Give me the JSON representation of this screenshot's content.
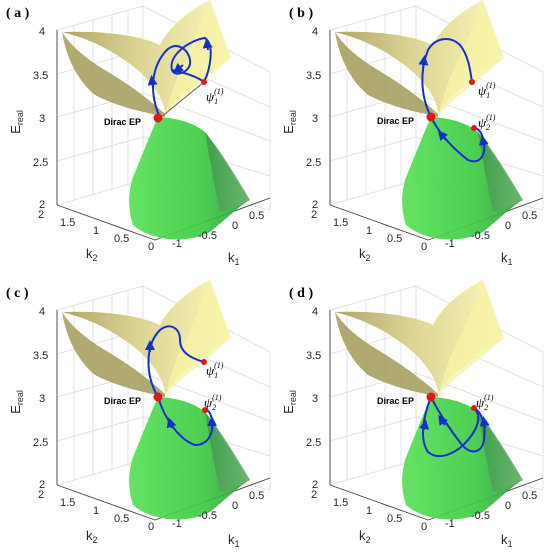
{
  "chart_data": [
    {
      "type": "surface",
      "panel_label": "( a )",
      "axes": {
        "x_label": "k",
        "x_sub": "1",
        "y_label": "k",
        "y_sub": "2",
        "z_label": "E",
        "z_sub": "real"
      },
      "x_ticks": [
        "-1",
        "-0.5",
        "0",
        "0.5"
      ],
      "y_ticks": [
        "0",
        "0.5",
        "1",
        "1.5",
        "2"
      ],
      "z_ticks": [
        "2",
        "2.5",
        "3",
        "3.5",
        "4"
      ],
      "xlim": [
        -1,
        0.5
      ],
      "ylim": [
        0,
        2
      ],
      "zlim": [
        2,
        4
      ],
      "grid": true,
      "surfaces": [
        {
          "name": "upper sheet",
          "color": "#f3ee9a"
        },
        {
          "name": "lower sheet",
          "color": "#3fd34a"
        }
      ],
      "annotations": {
        "ep_text": "Dirac EP",
        "psi_symbol": "ψ",
        "psi_sub": "1",
        "psi_sup": "(1)"
      },
      "loop_color": "#1530c8",
      "point_color": "#e01818"
    },
    {
      "type": "surface",
      "panel_label": "( b )",
      "axes": {
        "x_label": "k",
        "x_sub": "1",
        "y_label": "k",
        "y_sub": "2",
        "z_label": "E",
        "z_sub": "real"
      },
      "x_ticks": [
        "-1",
        "-0.5",
        "0",
        "0.5"
      ],
      "y_ticks": [
        "0",
        "0.5",
        "1",
        "1.5",
        "2"
      ],
      "z_ticks": [
        "2",
        "2.5",
        "3",
        "3.5",
        "4"
      ],
      "xlim": [
        -1,
        0.5
      ],
      "ylim": [
        0,
        2
      ],
      "zlim": [
        2,
        4
      ],
      "grid": true,
      "surfaces": [
        {
          "name": "upper sheet",
          "color": "#f3ee9a"
        },
        {
          "name": "lower sheet",
          "color": "#3fd34a"
        }
      ],
      "annotations": {
        "ep_text": "Dirac EP",
        "psi1_symbol": "ψ",
        "psi1_sub": "1",
        "psi1_sup": "(1)",
        "psi2_symbol": "ψ",
        "psi2_sub": "2",
        "psi2_sup": "(1)"
      },
      "loop_color": "#1530c8",
      "point_color": "#e01818"
    },
    {
      "type": "surface",
      "panel_label": "( c )",
      "axes": {
        "x_label": "k",
        "x_sub": "1",
        "y_label": "k",
        "y_sub": "2",
        "z_label": "E",
        "z_sub": "real"
      },
      "x_ticks": [
        "-1",
        "-0.5",
        "0",
        "0.5"
      ],
      "y_ticks": [
        "0",
        "0.5",
        "1",
        "1.5",
        "2"
      ],
      "z_ticks": [
        "2",
        "2.5",
        "3",
        "3.5",
        "4"
      ],
      "xlim": [
        -1,
        0.5
      ],
      "ylim": [
        0,
        2
      ],
      "zlim": [
        2,
        4
      ],
      "grid": true,
      "surfaces": [
        {
          "name": "upper sheet",
          "color": "#f3ee9a"
        },
        {
          "name": "lower sheet",
          "color": "#3fd34a"
        }
      ],
      "annotations": {
        "ep_text": "Dirac EP",
        "psi1_symbol": "ψ",
        "psi1_sub": "1",
        "psi1_sup": "(1)",
        "psi2_symbol": "ψ",
        "psi2_sub": "2",
        "psi2_sup": "(1)"
      },
      "loop_color": "#1530c8",
      "point_color": "#e01818"
    },
    {
      "type": "surface",
      "panel_label": "( d )",
      "axes": {
        "x_label": "k",
        "x_sub": "1",
        "y_label": "k",
        "y_sub": "2",
        "z_label": "E",
        "z_sub": "real"
      },
      "x_ticks": [
        "-1",
        "-0.5",
        "0",
        "0.5"
      ],
      "y_ticks": [
        "0",
        "0.5",
        "1",
        "1.5",
        "2"
      ],
      "z_ticks": [
        "2",
        "2.5",
        "3",
        "3.5",
        "4"
      ],
      "xlim": [
        -1,
        0.5
      ],
      "ylim": [
        0,
        2
      ],
      "zlim": [
        2,
        4
      ],
      "grid": true,
      "surfaces": [
        {
          "name": "upper sheet",
          "color": "#f3ee9a"
        },
        {
          "name": "lower sheet",
          "color": "#3fd34a"
        }
      ],
      "annotations": {
        "ep_text": "Dirac EP",
        "psi_symbol": "ψ",
        "psi_sub": "2",
        "psi_sup": "(1)"
      },
      "loop_color": "#1530c8",
      "point_color": "#e01818"
    }
  ]
}
